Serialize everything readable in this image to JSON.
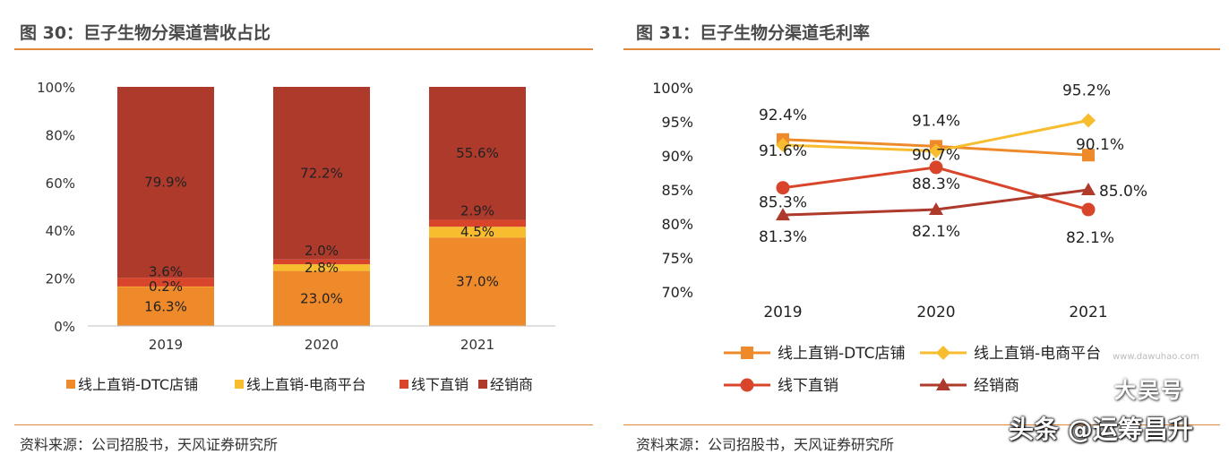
{
  "left_figure": {
    "title": "图 30：巨子生物分渠道营收占比",
    "source": "资料来源：公司招股书，天风证券研究所"
  },
  "right_figure": {
    "title": "图 31：巨子生物分渠道毛利率",
    "source": "资料来源：公司招股书，天风证券研究所"
  },
  "watermark": {
    "main": "头条 @运筹昌升",
    "top": "大吴号",
    "url": "www.dawuhao.com"
  },
  "chart_data": [
    {
      "type": "bar",
      "stacked": true,
      "categories": [
        "2019",
        "2020",
        "2021"
      ],
      "yticks": [
        "0%",
        "20%",
        "40%",
        "60%",
        "80%",
        "100%"
      ],
      "ylim": [
        0,
        100
      ],
      "legend_position": "bottom",
      "grid": false,
      "series": [
        {
          "name": "线上直销-DTC店铺",
          "color": "#ef8a2b",
          "values": [
            16.3,
            23.0,
            37.0
          ],
          "labels": [
            "16.3%",
            "23.0%",
            "37.0%"
          ]
        },
        {
          "name": "线上直销-电商平台",
          "color": "#f7bd2e",
          "values": [
            0.2,
            2.8,
            4.5
          ],
          "labels": [
            "0.2%",
            "2.8%",
            "4.5%"
          ]
        },
        {
          "name": "线下直销",
          "color": "#d9452b",
          "values": [
            3.6,
            2.0,
            2.9
          ],
          "labels": [
            "3.6%",
            "2.0%",
            "2.9%"
          ]
        },
        {
          "name": "经销商",
          "color": "#ae3a2c",
          "values": [
            79.9,
            72.2,
            55.6
          ],
          "labels": [
            "79.9%",
            "72.2%",
            "55.6%"
          ]
        }
      ]
    },
    {
      "type": "line",
      "categories": [
        "2019",
        "2020",
        "2021"
      ],
      "yticks": [
        "70%",
        "75%",
        "80%",
        "85%",
        "90%",
        "95%",
        "100%"
      ],
      "ylim": [
        70,
        100
      ],
      "legend_position": "bottom",
      "grid": false,
      "series": [
        {
          "name": "线上直销-DTC店铺",
          "color": "#ef8a2b",
          "marker": "square",
          "values": [
            92.4,
            91.4,
            90.1
          ],
          "labels": [
            "92.4%",
            "91.4%",
            "90.1%"
          ]
        },
        {
          "name": "线上直销-电商平台",
          "color": "#f7bd2e",
          "marker": "diamond",
          "values": [
            91.6,
            90.7,
            95.2
          ],
          "labels": [
            "91.6%",
            "90.7%",
            "95.2%"
          ]
        },
        {
          "name": "线下直销",
          "color": "#d9452b",
          "marker": "circle",
          "values": [
            85.3,
            88.3,
            82.1
          ],
          "labels": [
            "85.3%",
            "88.3%",
            "82.1%"
          ]
        },
        {
          "name": "经销商",
          "color": "#ae3a2c",
          "marker": "triangle",
          "values": [
            81.3,
            82.1,
            85.0
          ],
          "labels": [
            "81.3%",
            "82.1%",
            "85.0%"
          ]
        }
      ]
    }
  ]
}
